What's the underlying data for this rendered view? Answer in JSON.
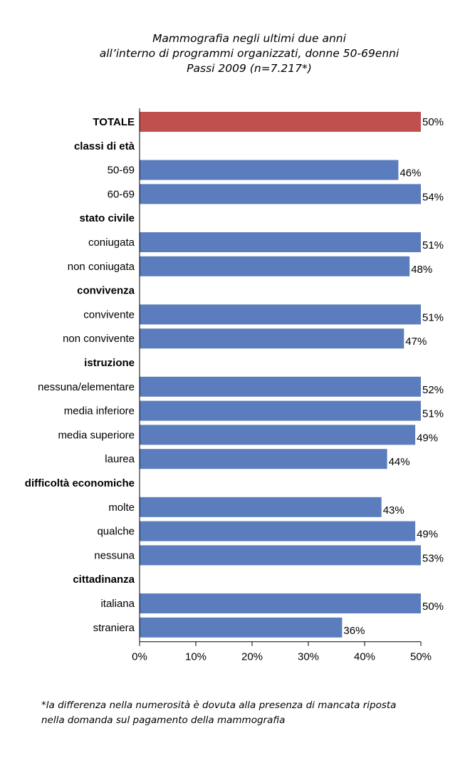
{
  "title": {
    "lines": [
      "Mammografia negli ultimi due anni",
      "all’interno di programmi organizzati, donne 50-69enni",
      "Passi 2009 (n=7.217*)"
    ]
  },
  "footnote": {
    "lines": [
      "*la differenza nella numerosità è dovuta alla presenza di mancata riposta",
      "nella domanda sul pagamento della mammografia"
    ]
  },
  "colors": {
    "total_bar": "#C0504D",
    "bar": "#5B7DBD"
  },
  "chart_data": {
    "type": "bar",
    "orientation": "horizontal",
    "title": "Mammografia negli ultimi due anni all’interno di programmi organizzati, donne 50-69enni Passi 2009 (n=7.217*)",
    "xlabel": "",
    "ylabel": "",
    "xlim": [
      0,
      50
    ],
    "x_ticks": [
      "0%",
      "10%",
      "20%",
      "30%",
      "40%",
      "50%"
    ],
    "x_tick_values": [
      0,
      10,
      20,
      30,
      40,
      50
    ],
    "rows": [
      {
        "kind": "bar",
        "label": "TOTALE",
        "value": 50,
        "display": "50%",
        "highlight": true
      },
      {
        "kind": "group",
        "label": "classi di età"
      },
      {
        "kind": "bar",
        "label": "50-69",
        "value": 46,
        "display": "46%"
      },
      {
        "kind": "bar",
        "label": "60-69",
        "value": 54,
        "display": "54%"
      },
      {
        "kind": "group",
        "label": "stato civile"
      },
      {
        "kind": "bar",
        "label": "coniugata",
        "value": 51,
        "display": "51%"
      },
      {
        "kind": "bar",
        "label": "non coniugata",
        "value": 48,
        "display": "48%"
      },
      {
        "kind": "group",
        "label": "convivenza"
      },
      {
        "kind": "bar",
        "label": "convivente",
        "value": 51,
        "display": "51%"
      },
      {
        "kind": "bar",
        "label": "non convivente",
        "value": 47,
        "display": "47%"
      },
      {
        "kind": "group",
        "label": "istruzione"
      },
      {
        "kind": "bar",
        "label": "nessuna/elementare",
        "value": 52,
        "display": "52%"
      },
      {
        "kind": "bar",
        "label": "media inferiore",
        "value": 51,
        "display": "51%"
      },
      {
        "kind": "bar",
        "label": "media superiore",
        "value": 49,
        "display": "49%"
      },
      {
        "kind": "bar",
        "label": "laurea",
        "value": 44,
        "display": "44%"
      },
      {
        "kind": "group",
        "label": "difficoltà economiche"
      },
      {
        "kind": "bar",
        "label": "molte",
        "value": 43,
        "display": "43%"
      },
      {
        "kind": "bar",
        "label": "qualche",
        "value": 49,
        "display": "49%"
      },
      {
        "kind": "bar",
        "label": "nessuna",
        "value": 53,
        "display": "53%"
      },
      {
        "kind": "group",
        "label": "cittadinanza"
      },
      {
        "kind": "bar",
        "label": "italiana",
        "value": 50,
        "display": "50%"
      },
      {
        "kind": "bar",
        "label": "straniera",
        "value": 36,
        "display": "36%"
      }
    ]
  }
}
